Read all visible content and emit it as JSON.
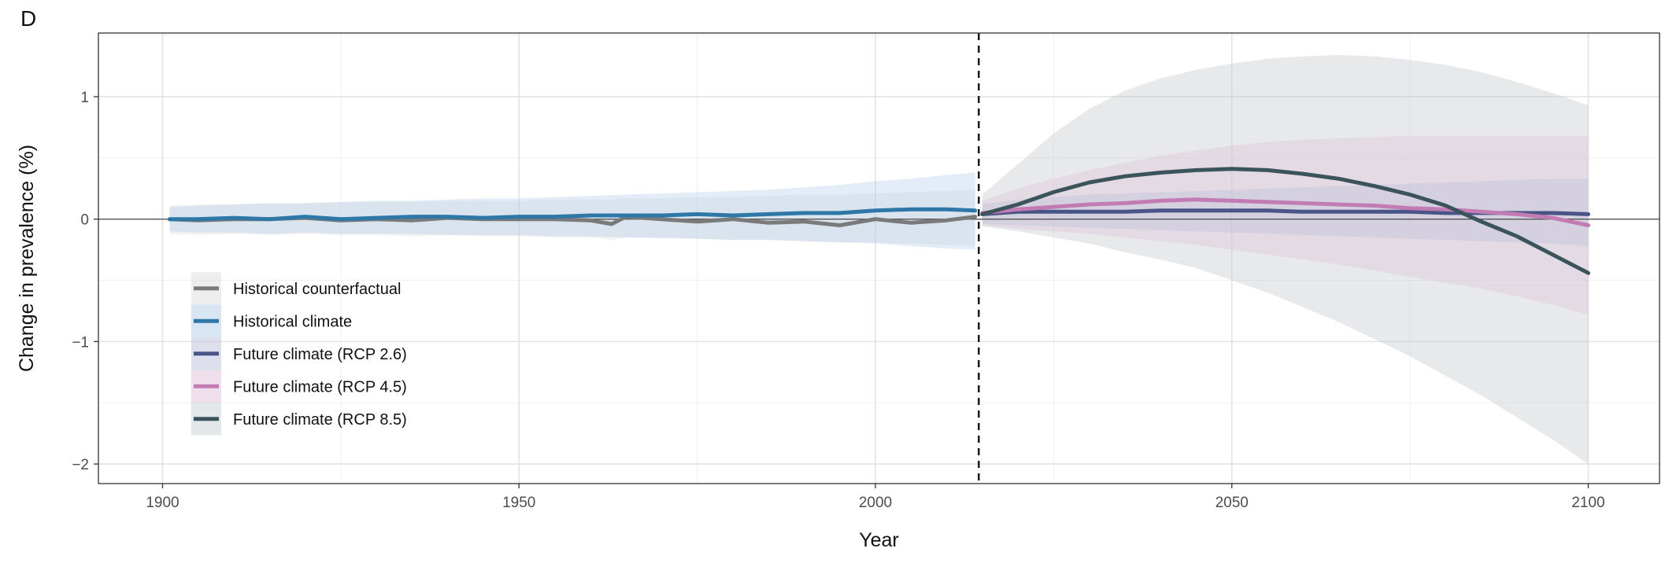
{
  "panel_label": "D",
  "chart_data": {
    "type": "line",
    "xlabel": "Year",
    "ylabel": "Change in prevalence (%)",
    "xlim": [
      1891,
      2110
    ],
    "ylim": [
      -2.16,
      1.52
    ],
    "xticks": [
      1900,
      1950,
      2000,
      2050,
      2100
    ],
    "xtick_labels": [
      "1900",
      "1950",
      "2000",
      "2050",
      "2100"
    ],
    "yticks": [
      -2,
      -1,
      0,
      1
    ],
    "ytick_labels": [
      "−2",
      "−1",
      "0",
      "1"
    ],
    "grid": true,
    "zero_line": 0,
    "reference_line": {
      "x": 2014.5,
      "style": "dashed"
    },
    "legend_position": "bottom-left",
    "colors": {
      "counterfactual": "#7a7a7a",
      "historical": "#2e78a8",
      "rcp26": "#4a5587",
      "rcp45": "#c27bb3",
      "rcp85": "#3b545c"
    },
    "series": [
      {
        "name": "Historical counterfactual",
        "color": "#7a7a7a",
        "x": [
          1901,
          1905,
          1910,
          1915,
          1920,
          1925,
          1930,
          1935,
          1940,
          1945,
          1950,
          1955,
          1960,
          1963,
          1965,
          1970,
          1975,
          1980,
          1985,
          1990,
          1995,
          2000,
          2005,
          2010,
          2014
        ],
        "y": [
          0.0,
          -0.01,
          0.0,
          0.0,
          0.01,
          -0.01,
          0.0,
          -0.01,
          0.01,
          0.0,
          0.0,
          0.0,
          -0.01,
          -0.04,
          0.02,
          0.0,
          -0.02,
          0.0,
          -0.03,
          -0.02,
          -0.05,
          0.0,
          -0.03,
          -0.01,
          0.02
        ],
        "band_lower": [
          -0.12,
          -0.13,
          -0.12,
          -0.13,
          -0.12,
          -0.13,
          -0.13,
          -0.14,
          -0.13,
          -0.14,
          -0.14,
          -0.15,
          -0.15,
          -0.17,
          -0.15,
          -0.16,
          -0.16,
          -0.17,
          -0.17,
          -0.18,
          -0.19,
          -0.19,
          -0.2,
          -0.21,
          -0.22
        ],
        "band_upper": [
          0.11,
          0.12,
          0.12,
          0.13,
          0.13,
          0.14,
          0.14,
          0.14,
          0.15,
          0.15,
          0.15,
          0.16,
          0.16,
          0.16,
          0.17,
          0.17,
          0.18,
          0.18,
          0.19,
          0.2,
          0.2,
          0.21,
          0.22,
          0.23,
          0.24
        ]
      },
      {
        "name": "Historical climate",
        "color": "#2e78a8",
        "x": [
          1901,
          1905,
          1910,
          1915,
          1920,
          1925,
          1930,
          1935,
          1940,
          1945,
          1950,
          1955,
          1960,
          1965,
          1970,
          1975,
          1980,
          1985,
          1990,
          1995,
          2000,
          2005,
          2010,
          2014
        ],
        "y": [
          0.0,
          0.0,
          0.01,
          0.0,
          0.02,
          0.0,
          0.01,
          0.02,
          0.02,
          0.01,
          0.02,
          0.02,
          0.03,
          0.03,
          0.03,
          0.04,
          0.03,
          0.04,
          0.05,
          0.05,
          0.07,
          0.08,
          0.08,
          0.07
        ],
        "band_lower": [
          -0.1,
          -0.11,
          -0.11,
          -0.12,
          -0.11,
          -0.12,
          -0.12,
          -0.12,
          -0.13,
          -0.13,
          -0.13,
          -0.14,
          -0.14,
          -0.15,
          -0.15,
          -0.16,
          -0.17,
          -0.17,
          -0.18,
          -0.19,
          -0.2,
          -0.22,
          -0.24,
          -0.25
        ],
        "band_upper": [
          0.1,
          0.11,
          0.12,
          0.13,
          0.13,
          0.14,
          0.15,
          0.15,
          0.16,
          0.17,
          0.17,
          0.18,
          0.19,
          0.2,
          0.21,
          0.22,
          0.23,
          0.24,
          0.26,
          0.28,
          0.31,
          0.33,
          0.36,
          0.38
        ]
      },
      {
        "name": "Future climate (RCP 2.6)",
        "color": "#4a5587",
        "x": [
          2015,
          2020,
          2025,
          2030,
          2035,
          2040,
          2045,
          2050,
          2055,
          2060,
          2065,
          2070,
          2075,
          2080,
          2085,
          2090,
          2095,
          2100
        ],
        "y": [
          0.04,
          0.06,
          0.06,
          0.06,
          0.06,
          0.07,
          0.07,
          0.07,
          0.07,
          0.06,
          0.06,
          0.06,
          0.06,
          0.05,
          0.05,
          0.05,
          0.05,
          0.04
        ],
        "band_lower": [
          -0.04,
          -0.05,
          -0.06,
          -0.07,
          -0.08,
          -0.09,
          -0.1,
          -0.11,
          -0.12,
          -0.13,
          -0.14,
          -0.15,
          -0.16,
          -0.17,
          -0.18,
          -0.19,
          -0.2,
          -0.22
        ],
        "band_upper": [
          0.12,
          0.16,
          0.18,
          0.2,
          0.21,
          0.22,
          0.23,
          0.24,
          0.25,
          0.26,
          0.27,
          0.28,
          0.29,
          0.3,
          0.31,
          0.32,
          0.33,
          0.33
        ]
      },
      {
        "name": "Future climate (RCP 4.5)",
        "color": "#c27bb3",
        "x": [
          2015,
          2020,
          2025,
          2030,
          2035,
          2040,
          2045,
          2050,
          2055,
          2060,
          2065,
          2070,
          2075,
          2080,
          2085,
          2090,
          2095,
          2100
        ],
        "y": [
          0.05,
          0.08,
          0.1,
          0.12,
          0.13,
          0.15,
          0.16,
          0.15,
          0.14,
          0.13,
          0.12,
          0.11,
          0.09,
          0.08,
          0.06,
          0.04,
          0.01,
          -0.05
        ],
        "band_lower": [
          -0.05,
          -0.08,
          -0.1,
          -0.12,
          -0.15,
          -0.18,
          -0.21,
          -0.25,
          -0.29,
          -0.33,
          -0.37,
          -0.42,
          -0.47,
          -0.52,
          -0.57,
          -0.63,
          -0.7,
          -0.78
        ],
        "band_upper": [
          0.15,
          0.25,
          0.33,
          0.4,
          0.46,
          0.52,
          0.56,
          0.6,
          0.63,
          0.65,
          0.66,
          0.67,
          0.68,
          0.68,
          0.68,
          0.68,
          0.68,
          0.68
        ]
      },
      {
        "name": "Future climate (RCP 8.5)",
        "color": "#3b545c",
        "x": [
          2015,
          2020,
          2025,
          2030,
          2035,
          2040,
          2045,
          2050,
          2055,
          2060,
          2065,
          2070,
          2075,
          2080,
          2085,
          2090,
          2095,
          2100
        ],
        "y": [
          0.04,
          0.12,
          0.22,
          0.3,
          0.35,
          0.38,
          0.4,
          0.41,
          0.4,
          0.37,
          0.33,
          0.27,
          0.2,
          0.11,
          -0.02,
          -0.14,
          -0.29,
          -0.44
        ],
        "band_lower": [
          -0.06,
          -0.1,
          -0.15,
          -0.2,
          -0.27,
          -0.33,
          -0.4,
          -0.5,
          -0.6,
          -0.72,
          -0.84,
          -0.98,
          -1.12,
          -1.28,
          -1.44,
          -1.62,
          -1.8,
          -2.0
        ],
        "band_upper": [
          0.2,
          0.45,
          0.7,
          0.9,
          1.05,
          1.15,
          1.22,
          1.27,
          1.31,
          1.33,
          1.34,
          1.33,
          1.3,
          1.26,
          1.2,
          1.12,
          1.03,
          0.93
        ]
      }
    ]
  }
}
